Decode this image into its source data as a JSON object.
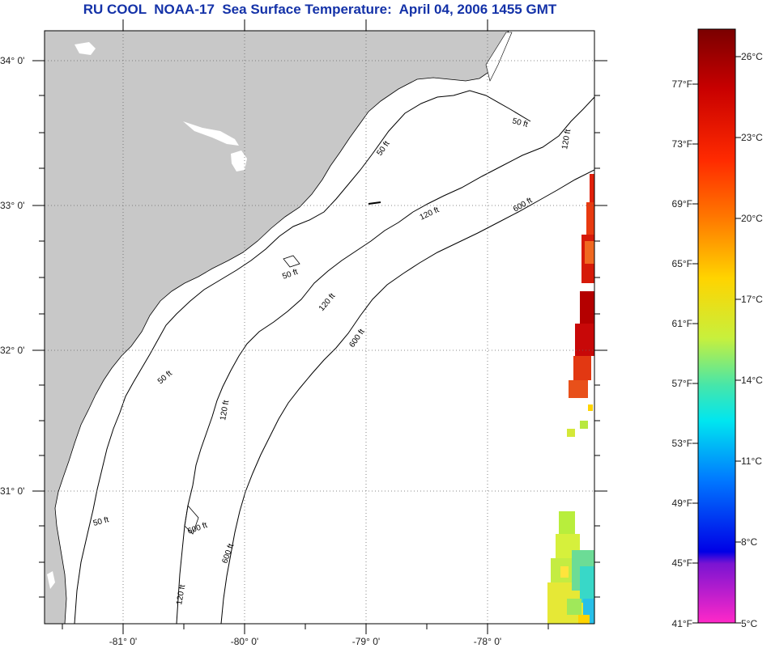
{
  "title": "RU COOL  NOAA-17  Sea Surface Temperature:  April 04, 2006 1455 GMT",
  "map": {
    "lat_labels": [
      "34° 0'",
      "33° 0'",
      "32° 0'",
      "31° 0'"
    ],
    "lon_labels": [
      "-81° 0'",
      "-80° 0'",
      "-79° 0'",
      "-78° 0'"
    ],
    "contour_labels": [
      "50 ft",
      "120 ft",
      "600 ft",
      "50 ft",
      "120 ft",
      "600 ft",
      "50 ft",
      "120 ft",
      "600 ft",
      "50 ft",
      "120 ft",
      "600 ft",
      "50 ft",
      "120 ft"
    ],
    "colors": {
      "land": "#c8c8c8",
      "ocean": "#ffffff",
      "contour": "#000000"
    }
  },
  "colorbar": {
    "fahrenheit_labels": [
      "77°F",
      "73°F",
      "69°F",
      "65°F",
      "61°F",
      "57°F",
      "53°F",
      "49°F",
      "45°F",
      "41°F"
    ],
    "celsius_labels": [
      "26°C",
      "23°C",
      "20°C",
      "17°C",
      "14°C",
      "11°C",
      "8°C",
      "5°C"
    ],
    "gradient_stops": [
      "#7a0000",
      "#c80000",
      "#ff2a00",
      "#ff7a00",
      "#ffd400",
      "#c8f03c",
      "#46e6aa",
      "#00e6f0",
      "#0078ff",
      "#0000e6",
      "#7a14d2",
      "#ff28c8"
    ]
  }
}
